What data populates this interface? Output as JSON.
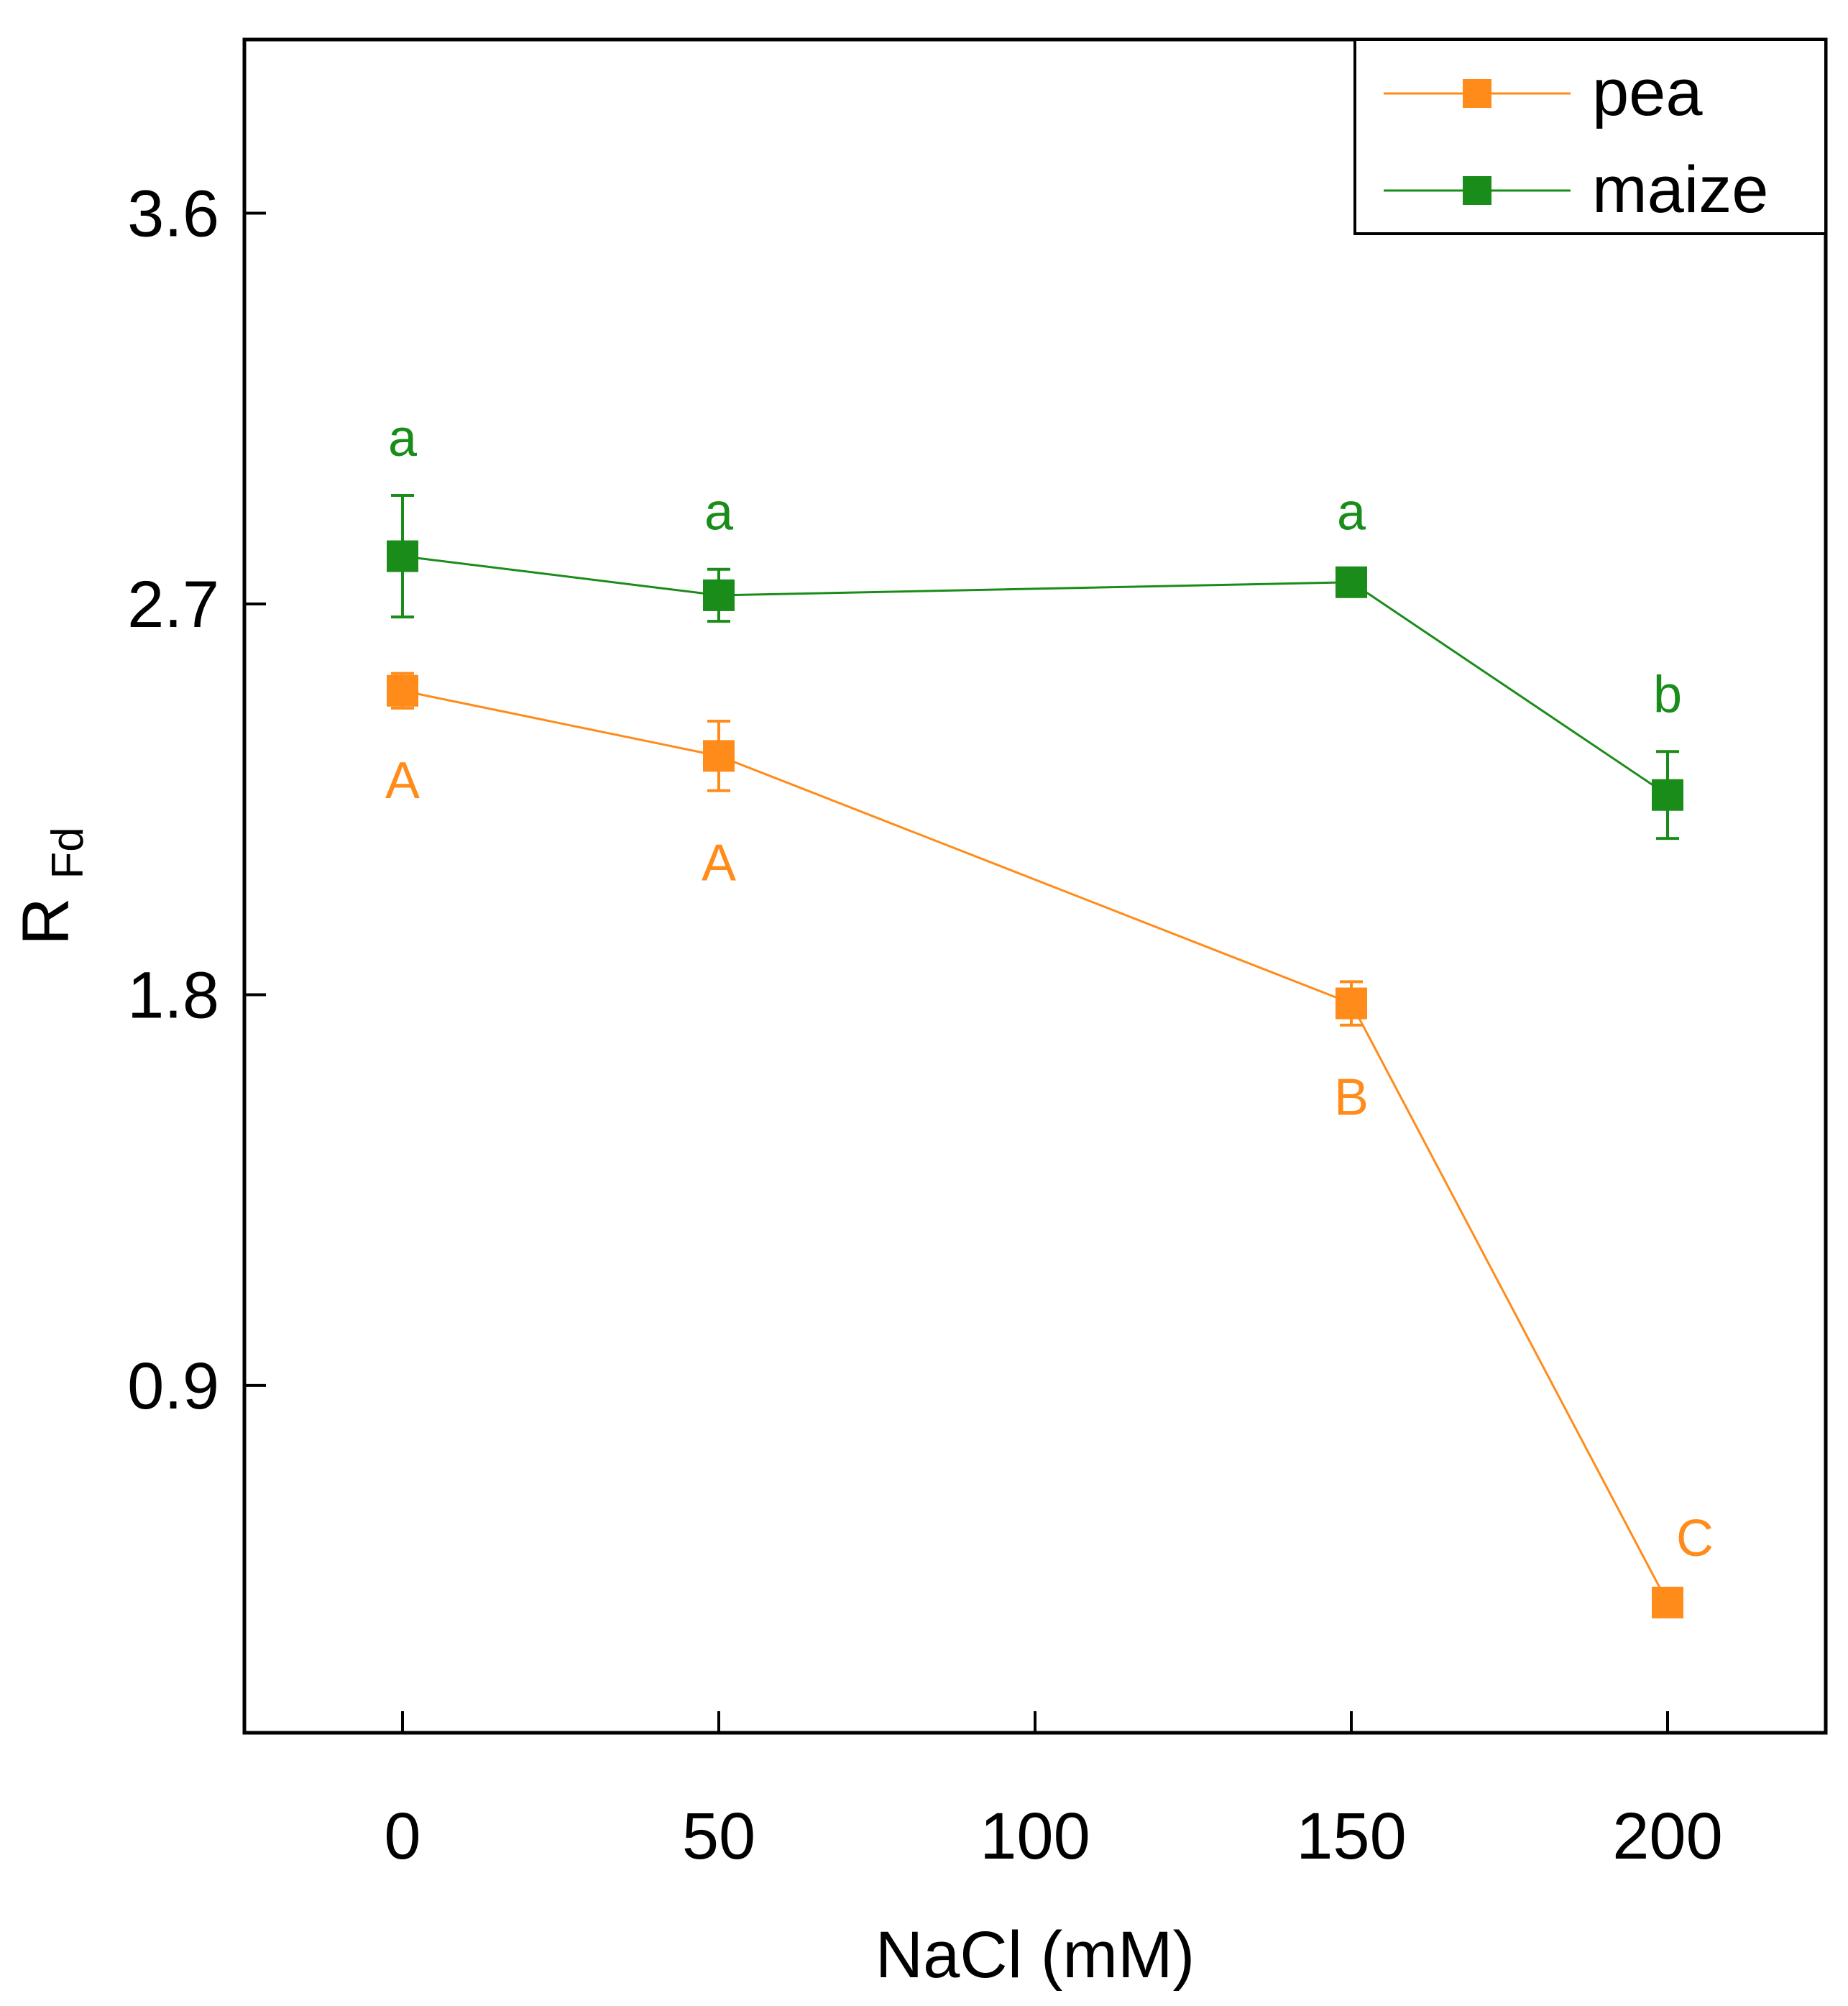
{
  "chart_data": {
    "type": "line",
    "xlabel": "NaCl (mM)",
    "ylabel": {
      "main": "R",
      "sub": "Fd"
    },
    "xlim": [
      -25,
      225
    ],
    "ylim": [
      0.1,
      4.0
    ],
    "xticks": [
      0,
      50,
      100,
      150,
      200
    ],
    "yticks": [
      0.9,
      1.8,
      2.7,
      3.6
    ],
    "xtick_labels": [
      "0",
      "50",
      "100",
      "150",
      "200"
    ],
    "ytick_labels": [
      "0.9",
      "1.8",
      "2.7",
      "3.6"
    ],
    "x": [
      0,
      50,
      150,
      200
    ],
    "legend_position": "top-right",
    "grid": false,
    "series": [
      {
        "name": "pea",
        "color": "#FF8C1A",
        "values": [
          2.5,
          2.35,
          1.78,
          0.4
        ],
        "errors": [
          0.04,
          0.08,
          0.05,
          0.0
        ],
        "letters": [
          "A",
          "A",
          "B",
          "C"
        ],
        "letter_position": [
          "below",
          "below",
          "below",
          "above-right"
        ]
      },
      {
        "name": "maize",
        "color": "#1A8C1A",
        "values": [
          2.81,
          2.72,
          2.75,
          2.26
        ],
        "errors": [
          0.14,
          0.06,
          0.03,
          0.1
        ],
        "letters": [
          "a",
          "a",
          "a",
          "b"
        ],
        "letter_position": [
          "above",
          "above",
          "above",
          "above"
        ]
      }
    ]
  }
}
